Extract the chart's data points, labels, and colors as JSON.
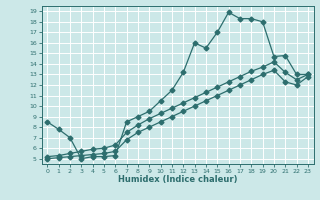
{
  "xlabel": "Humidex (Indice chaleur)",
  "bg_color": "#cce8e8",
  "line_color": "#2d6e6e",
  "grid_color": "#b0d8d8",
  "xlim": [
    -0.5,
    23.5
  ],
  "ylim": [
    4.5,
    19.5
  ],
  "xticks": [
    0,
    1,
    2,
    3,
    4,
    5,
    6,
    7,
    8,
    9,
    10,
    11,
    12,
    13,
    14,
    15,
    16,
    17,
    18,
    19,
    20,
    21,
    22,
    23
  ],
  "yticks": [
    5,
    6,
    7,
    8,
    9,
    10,
    11,
    12,
    13,
    14,
    15,
    16,
    17,
    18,
    19
  ],
  "line1_x": [
    0,
    1,
    2,
    3,
    4,
    5,
    6,
    7,
    8,
    9,
    10,
    11,
    12,
    13,
    14,
    15,
    16,
    17,
    18,
    19,
    20,
    21,
    22,
    23
  ],
  "line1_y": [
    8.5,
    7.8,
    7.0,
    5.0,
    5.2,
    5.2,
    5.3,
    8.5,
    9.0,
    9.5,
    10.5,
    11.5,
    13.2,
    16.0,
    15.5,
    17.0,
    18.9,
    18.3,
    18.3,
    18.0,
    14.7,
    14.8,
    13.0,
    13.0
  ],
  "line2_x": [
    0,
    1,
    2,
    3,
    4,
    5,
    6,
    7,
    8,
    9,
    10,
    11,
    12,
    13,
    14,
    15,
    16,
    17,
    18,
    19,
    20,
    21,
    22,
    23
  ],
  "line2_y": [
    5.2,
    5.3,
    5.5,
    5.7,
    5.9,
    6.0,
    6.3,
    7.5,
    8.2,
    8.8,
    9.3,
    9.8,
    10.3,
    10.8,
    11.3,
    11.8,
    12.3,
    12.8,
    13.3,
    13.7,
    14.2,
    13.2,
    12.5,
    13.0
  ],
  "line3_x": [
    0,
    1,
    2,
    3,
    4,
    5,
    6,
    7,
    8,
    9,
    10,
    11,
    12,
    13,
    14,
    15,
    16,
    17,
    18,
    19,
    20,
    21,
    22,
    23
  ],
  "line3_y": [
    5.0,
    5.1,
    5.2,
    5.3,
    5.4,
    5.5,
    5.7,
    6.8,
    7.5,
    8.0,
    8.5,
    9.0,
    9.5,
    10.0,
    10.5,
    11.0,
    11.5,
    12.0,
    12.5,
    13.0,
    13.4,
    12.3,
    12.0,
    12.8
  ]
}
